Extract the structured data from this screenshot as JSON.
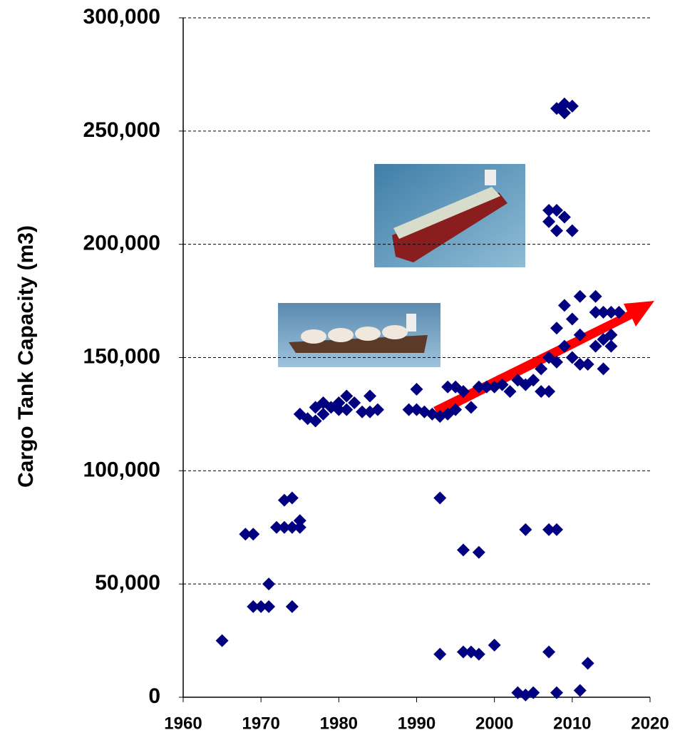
{
  "chart_data": {
    "type": "scatter",
    "y_label": "Cargo Tank Capacity (m3)",
    "xlim": [
      1960,
      2020
    ],
    "xticks": [
      1960,
      1970,
      1980,
      1990,
      2000,
      2010,
      2020
    ],
    "ylim": [
      0,
      300000
    ],
    "yticks": [
      0,
      {
        "value": 50000,
        "label": "50,000"
      },
      {
        "value": 100000,
        "label": "100,000"
      },
      {
        "value": 150000,
        "label": "150,000"
      },
      {
        "value": 200000,
        "label": "200,000"
      },
      {
        "value": 250000,
        "label": "250,000"
      },
      {
        "value": 300000,
        "label": "300,000"
      }
    ],
    "grid": true,
    "series": [
      {
        "color": "#000080",
        "x": [
          1965,
          1968,
          1969,
          1969,
          1970,
          1971,
          1971,
          1972,
          1973,
          1974,
          1975,
          1973,
          1974,
          1975,
          1974,
          1975,
          1976,
          1977,
          1977,
          1978,
          1978,
          1979,
          1980,
          1980,
          1981,
          1981,
          1982,
          1983,
          1984,
          1984,
          1985,
          1989,
          1990,
          1990,
          1991,
          1992,
          1993,
          1993,
          1993,
          1994,
          1994,
          1995,
          1995,
          1996,
          1996,
          1996,
          1997,
          1997,
          1998,
          1998,
          1998,
          1999,
          2000,
          2000,
          2001,
          2002,
          2003,
          2003,
          2004,
          2004,
          2004,
          2005,
          2005,
          2006,
          2006,
          2007,
          2007,
          2007,
          2007,
          2007,
          2007,
          2008,
          2008,
          2008,
          2008,
          2008,
          2008,
          2008,
          2009,
          2009,
          2009,
          2009,
          2009,
          2010,
          2010,
          2010,
          2010,
          2011,
          2011,
          2011,
          2011,
          2012,
          2012,
          2013,
          2013,
          2013,
          2014,
          2014,
          2014,
          2015,
          2015,
          2015,
          2016
        ],
        "values": [
          25000,
          72000,
          72000,
          40000,
          40000,
          40000,
          50000,
          75000,
          75000,
          75000,
          75000,
          87000,
          88000,
          78000,
          40000,
          125000,
          123000,
          128000,
          122000,
          130000,
          125000,
          128000,
          127000,
          130000,
          133000,
          127000,
          130000,
          126000,
          133000,
          126000,
          127000,
          127000,
          136000,
          127000,
          126000,
          125000,
          124000,
          88000,
          19000,
          137000,
          125000,
          137000,
          127000,
          135000,
          65000,
          20000,
          20000,
          128000,
          64000,
          19000,
          137000,
          137000,
          23000,
          137000,
          138000,
          135000,
          140000,
          2000,
          74000,
          1000,
          138000,
          2000,
          140000,
          145000,
          135000,
          74000,
          20000,
          210000,
          215000,
          150000,
          135000,
          74000,
          2000,
          215000,
          206000,
          260000,
          163000,
          148000,
          258000,
          262000,
          212000,
          173000,
          155000,
          261000,
          206000,
          167000,
          150000,
          177000,
          160000,
          3000,
          147000,
          15000,
          147000,
          177000,
          170000,
          155000,
          145000,
          170000,
          158000,
          170000,
          160000,
          155000,
          170000
        ]
      }
    ]
  }
}
